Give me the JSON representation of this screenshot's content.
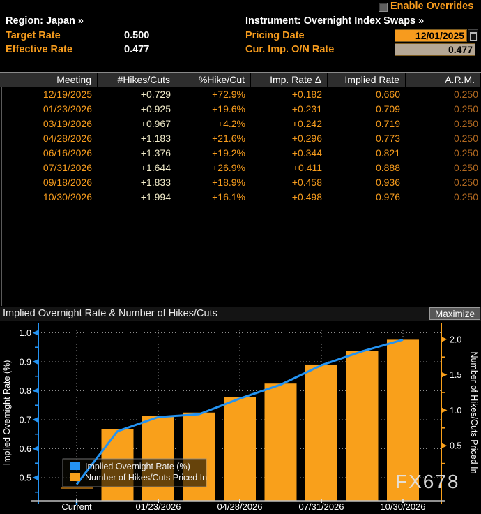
{
  "header": {
    "enable_overrides_label": "Enable Overrides",
    "enable_overrides_checked": false,
    "region_link": "Region: Japan »",
    "instrument_link": "Instrument: Overnight Index Swaps »",
    "target_rate_label": "Target Rate",
    "target_rate_value": "0.500",
    "effective_rate_label": "Effective Rate",
    "effective_rate_value": "0.477",
    "pricing_date_label": "Pricing Date",
    "pricing_date_value": "12/01/2025",
    "cur_imp_rate_label": "Cur. Imp. O/N Rate",
    "cur_imp_rate_value": "0.477"
  },
  "table": {
    "columns": [
      "Meeting",
      "#Hikes/Cuts",
      "%Hike/Cut",
      "Imp. Rate Δ",
      "Implied Rate",
      "A.R.M."
    ],
    "rows": [
      [
        "12/19/2025",
        "+0.729",
        "+72.9%",
        "+0.182",
        "0.660",
        "0.250"
      ],
      [
        "01/23/2026",
        "+0.925",
        "+19.6%",
        "+0.231",
        "0.709",
        "0.250"
      ],
      [
        "03/19/2026",
        "+0.967",
        "+4.2%",
        "+0.242",
        "0.719",
        "0.250"
      ],
      [
        "04/28/2026",
        "+1.183",
        "+21.6%",
        "+0.296",
        "0.773",
        "0.250"
      ],
      [
        "06/16/2026",
        "+1.376",
        "+19.2%",
        "+0.344",
        "0.821",
        "0.250"
      ],
      [
        "07/31/2026",
        "+1.644",
        "+26.9%",
        "+0.411",
        "0.888",
        "0.250"
      ],
      [
        "09/18/2026",
        "+1.833",
        "+18.9%",
        "+0.458",
        "0.936",
        "0.250"
      ],
      [
        "10/30/2026",
        "+1.994",
        "+16.1%",
        "+0.498",
        "0.976",
        "0.250"
      ]
    ]
  },
  "chart": {
    "title": "Implied Overnight Rate & Number of Hikes/Cuts",
    "maximize_label": "Maximize",
    "watermark": "FX678"
  },
  "chart_data": {
    "type": "bar",
    "subtype": "bar+line dual-axis",
    "title": "Implied Overnight Rate & Number of Hikes/Cuts",
    "categories": [
      "Current",
      "12/19/2025",
      "01/23/2026",
      "03/19/2026",
      "04/28/2026",
      "06/16/2026",
      "07/31/2026",
      "09/18/2026",
      "10/30/2026"
    ],
    "x_tick_labels": [
      "Current",
      "01/23/2026",
      "04/28/2026",
      "07/31/2026",
      "10/30/2026"
    ],
    "series": [
      {
        "name": "Implied Overnight Rate (%)",
        "type": "line",
        "axis": "left",
        "color": "#2493f2",
        "values": [
          0.477,
          0.66,
          0.709,
          0.719,
          0.773,
          0.821,
          0.888,
          0.936,
          0.976
        ]
      },
      {
        "name": "Number of Hikes/Cuts Priced In",
        "type": "bar",
        "axis": "right",
        "color": "#f9a01b",
        "values": [
          0.0,
          0.729,
          0.925,
          0.967,
          1.183,
          1.376,
          1.644,
          1.833,
          1.994
        ]
      }
    ],
    "left_axis": {
      "label": "Implied Overnight Rate (%)",
      "ticks": [
        0.5,
        0.6,
        0.7,
        0.8,
        0.9,
        1.0
      ],
      "tick_labels": [
        "0.5",
        "0.6",
        "0.7",
        "0.8",
        "0.9",
        "1.0"
      ]
    },
    "right_axis": {
      "label": "Number of Hikes/Cuts Priced In",
      "ticks": [
        0.5,
        1.0,
        1.5,
        2.0
      ],
      "tick_labels": [
        "0.5",
        "1.0",
        "1.5",
        "2.0"
      ]
    },
    "legend": [
      "Implied Overnight Rate (%)",
      "Number of Hikes/Cuts Priced In"
    ],
    "legend_position": "bottom-left",
    "grid": true
  },
  "colors": {
    "accent_orange": "#f79c1d",
    "dim_orange": "#b06820",
    "cream": "#f2ecca",
    "bar_orange": "#f9a01b",
    "line_blue": "#2493f2",
    "current_marker": "#8f5a10",
    "grid_gray": "#8f8f8f",
    "header_bg": "#2e2e2e",
    "date_field_bg": "#f79b1e",
    "rate_field_bg": "#b5a795"
  }
}
